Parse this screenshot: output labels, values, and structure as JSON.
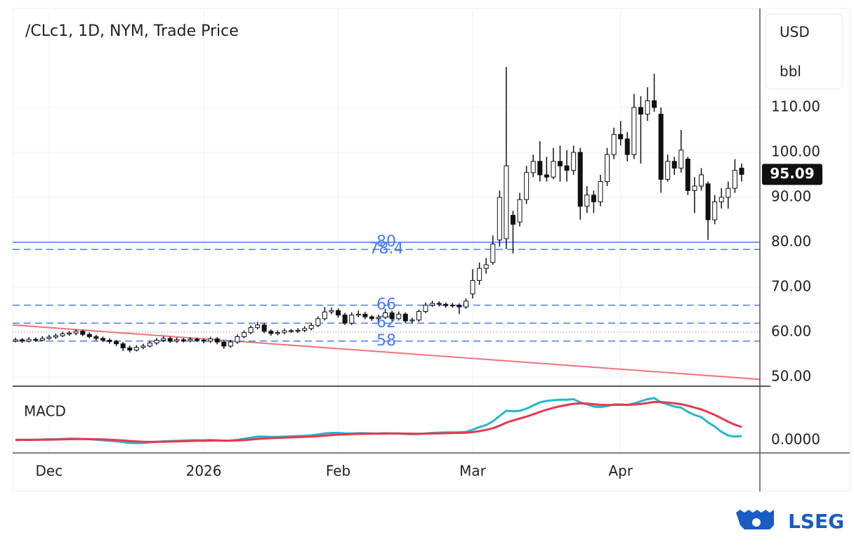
{
  "chart_data": {
    "type": "candlestick",
    "title": "/CLc1, 1D, NYM, Trade Price",
    "currency": "USD",
    "unit": "bbl",
    "categories": [
      null,
      null,
      null,
      null,
      null,
      "Dec",
      null,
      null,
      null,
      null,
      null,
      null,
      null,
      null,
      null,
      null,
      null,
      null,
      null,
      null,
      null,
      null,
      null,
      null,
      null,
      null,
      null,
      null,
      "2026",
      null,
      null,
      null,
      null,
      null,
      null,
      null,
      null,
      null,
      null,
      null,
      null,
      null,
      null,
      null,
      null,
      null,
      null,
      null,
      "Feb",
      null,
      null,
      null,
      null,
      null,
      null,
      null,
      null,
      null,
      null,
      null,
      null,
      null,
      null,
      null,
      null,
      null,
      null,
      null,
      "Mar",
      null,
      null,
      null,
      null,
      null,
      null,
      null,
      null,
      null,
      null,
      null,
      null,
      null,
      null,
      null,
      null,
      null,
      null,
      null,
      null,
      null,
      "Apr",
      null,
      null,
      null,
      null,
      null,
      null,
      null,
      null,
      null,
      null,
      null,
      null,
      null,
      null,
      null,
      null,
      null,
      null
    ],
    "open": [
      58.0,
      58.3,
      58.0,
      58.4,
      58.2,
      58.6,
      58.9,
      59.2,
      59.6,
      59.8,
      60.2,
      59.5,
      59.0,
      58.6,
      58.2,
      57.9,
      57.4,
      56.5,
      56.0,
      56.6,
      56.9,
      57.6,
      58.2,
      58.6,
      58.0,
      58.3,
      58.1,
      58.4,
      58.2,
      58.0,
      58.5,
      57.8,
      56.9,
      57.8,
      59.0,
      59.9,
      61.0,
      61.6,
      60.2,
      59.7,
      59.9,
      60.3,
      60.2,
      60.4,
      60.8,
      61.5,
      63.0,
      64.5,
      64.8,
      63.8,
      62.0,
      63.8,
      64.0,
      63.4,
      63.0,
      63.3,
      64.3,
      63.0,
      64.0,
      62.5,
      62.7,
      64.6,
      66.0,
      66.4,
      66.2,
      65.9,
      66.0,
      65.6,
      68.5,
      71.5,
      74.2,
      75.5,
      80.5,
      80.8,
      86.0,
      84.5,
      89.5,
      95.5,
      98.0,
      95.0,
      94.5,
      98.0,
      97.0,
      96.0,
      100.0,
      88.0,
      90.5,
      89.0,
      93.5,
      99.5,
      104.0,
      103.0,
      99.5,
      110.0,
      108.5,
      111.5,
      108.5,
      94.0,
      98.0,
      96.5,
      98.5,
      91.5,
      92.5,
      93.0,
      85.0,
      89.0,
      90.0,
      92.0,
      96.5
    ],
    "high": [
      58.8,
      58.7,
      58.9,
      58.8,
      59.1,
      59.4,
      59.7,
      60.1,
      60.3,
      60.6,
      60.5,
      59.9,
      59.4,
      59.0,
      58.6,
      58.3,
      57.8,
      57.0,
      57.1,
      57.4,
      58.1,
      58.7,
      59.1,
      59.0,
      58.8,
      58.7,
      58.9,
      58.8,
      58.6,
      59.0,
      58.9,
      58.2,
      58.3,
      59.5,
      60.4,
      61.5,
      62.3,
      62.0,
      60.6,
      60.4,
      60.8,
      60.7,
      60.9,
      61.3,
      62.0,
      63.5,
      65.6,
      65.5,
      65.3,
      64.3,
      64.4,
      64.8,
      64.5,
      63.8,
      63.9,
      65.2,
      64.8,
      64.6,
      64.4,
      63.2,
      65.0,
      66.6,
      67.0,
      66.9,
      66.6,
      66.5,
      66.4,
      67.5,
      74.0,
      75.5,
      76.5,
      81.5,
      91.5,
      119.0,
      87.0,
      91.0,
      97.0,
      99.5,
      102.5,
      99.0,
      101.0,
      101.5,
      100.5,
      101.5,
      101.0,
      92.5,
      91.5,
      95.0,
      101.0,
      105.5,
      107.0,
      104.5,
      113.0,
      112.5,
      114.5,
      117.5,
      110.0,
      99.5,
      99.0,
      105.0,
      99.0,
      94.5,
      96.5,
      93.5,
      90.5,
      92.0,
      93.5,
      98.5,
      97.5
    ],
    "low": [
      57.7,
      57.6,
      57.7,
      57.8,
      58.0,
      58.3,
      58.5,
      58.9,
      59.2,
      59.3,
      59.1,
      58.6,
      58.1,
      57.8,
      57.4,
      56.9,
      55.8,
      55.5,
      55.7,
      56.2,
      56.6,
      57.2,
      57.8,
      57.6,
      57.6,
      57.7,
      57.7,
      57.8,
      57.5,
      57.6,
      57.3,
      56.3,
      56.5,
      57.4,
      58.6,
      59.5,
      60.6,
      59.8,
      59.2,
      59.3,
      59.5,
      59.8,
      59.8,
      60.0,
      60.4,
      61.1,
      62.6,
      64.0,
      63.2,
      61.6,
      61.6,
      63.3,
      62.9,
      62.5,
      62.6,
      62.9,
      62.5,
      62.6,
      62.0,
      62.0,
      62.3,
      64.2,
      65.6,
      65.7,
      65.4,
      65.4,
      64.0,
      65.2,
      67.5,
      70.5,
      73.0,
      75.0,
      79.0,
      78.5,
      77.5,
      83.5,
      88.5,
      94.5,
      93.5,
      93.5,
      94.0,
      93.5,
      93.5,
      95.0,
      85.0,
      86.5,
      86.5,
      88.0,
      92.5,
      98.5,
      101.5,
      98.0,
      98.5,
      97.5,
      107.0,
      109.0,
      91.0,
      93.5,
      95.0,
      95.5,
      90.5,
      86.5,
      91.5,
      80.5,
      84.0,
      87.5,
      87.5,
      91.0,
      93.5
    ],
    "close": [
      58.3,
      58.0,
      58.4,
      58.2,
      58.6,
      58.9,
      59.2,
      59.6,
      59.8,
      60.2,
      59.5,
      59.0,
      58.6,
      58.2,
      57.9,
      57.4,
      56.5,
      56.0,
      56.6,
      56.9,
      57.6,
      58.2,
      58.6,
      58.0,
      58.3,
      58.1,
      58.4,
      58.2,
      58.0,
      58.5,
      57.8,
      56.9,
      57.8,
      59.0,
      59.9,
      61.0,
      61.6,
      60.2,
      59.7,
      59.9,
      60.3,
      60.2,
      60.4,
      60.8,
      61.5,
      63.0,
      64.5,
      64.8,
      63.8,
      62.0,
      63.8,
      64.0,
      63.4,
      63.0,
      63.3,
      64.3,
      63.0,
      64.0,
      62.5,
      62.7,
      64.6,
      66.0,
      66.4,
      66.2,
      65.9,
      66.0,
      65.6,
      66.9,
      71.5,
      74.2,
      75.0,
      79.6,
      90.0,
      97.0,
      84.0,
      89.5,
      95.5,
      98.0,
      95.0,
      94.5,
      98.0,
      97.0,
      96.0,
      100.0,
      88.0,
      90.5,
      89.0,
      93.5,
      99.5,
      104.0,
      103.0,
      99.5,
      110.0,
      108.5,
      111.5,
      110.0,
      94.0,
      98.0,
      96.5,
      100.5,
      91.5,
      92.5,
      95.0,
      85.0,
      89.0,
      90.0,
      92.0,
      96.0,
      95.09
    ],
    "ylim": [
      47.97,
      131.56
    ],
    "yticks": [
      {
        "value": 50,
        "label": "50.00"
      },
      {
        "value": 60,
        "label": "60.00"
      },
      {
        "value": 70,
        "label": "70.00"
      },
      {
        "value": 80,
        "label": "80.00"
      },
      {
        "value": 90,
        "label": "90.00"
      },
      {
        "value": 100,
        "label": "100.00"
      },
      {
        "value": 110,
        "label": "110.00"
      }
    ],
    "grid": true,
    "levels": [
      {
        "value": 80,
        "style": "solid",
        "color": "#4a7cf7"
      },
      {
        "value": 78.4,
        "style": "dashed",
        "color": "#4a7cf7"
      },
      {
        "value": 66,
        "style": "dashed",
        "color": "#4a7cf7"
      },
      {
        "value": 62,
        "style": "dashed",
        "color": "#4a7cf7"
      },
      {
        "value": 58,
        "style": "dashed",
        "color": "#4a7cf7"
      }
    ],
    "reference_line": 60,
    "trendline": {
      "color": "#f0737a",
      "values": [
        61.6,
        49.5
      ]
    },
    "indicator": {
      "title": "MACD",
      "ylim": [
        -2.4,
        10
      ],
      "yticks": [
        {
          "value": 0,
          "label": "0.0000"
        }
      ],
      "series": [
        {
          "color": "#22b8cf",
          "values": [
            0.1,
            0.1,
            0.1,
            0.1,
            0.15,
            0.2,
            0.2,
            0.25,
            0.3,
            0.3,
            0.25,
            0.2,
            0.1,
            0.0,
            -0.1,
            -0.2,
            -0.35,
            -0.5,
            -0.55,
            -0.5,
            -0.4,
            -0.3,
            -0.2,
            -0.15,
            -0.1,
            -0.05,
            0.0,
            0.0,
            0.0,
            0.05,
            0.0,
            -0.1,
            -0.05,
            0.1,
            0.3,
            0.5,
            0.7,
            0.7,
            0.65,
            0.65,
            0.7,
            0.75,
            0.8,
            0.85,
            0.95,
            1.1,
            1.3,
            1.4,
            1.4,
            1.3,
            1.3,
            1.35,
            1.35,
            1.3,
            1.3,
            1.35,
            1.3,
            1.3,
            1.2,
            1.15,
            1.2,
            1.3,
            1.4,
            1.45,
            1.5,
            1.5,
            1.5,
            1.6,
            2.0,
            2.5,
            2.9,
            3.6,
            4.6,
            5.6,
            5.5,
            5.6,
            6.0,
            6.6,
            7.2,
            7.5,
            7.6,
            7.7,
            7.7,
            7.8,
            7.2,
            6.8,
            6.4,
            6.3,
            6.5,
            6.8,
            6.8,
            6.7,
            7.0,
            7.4,
            7.8,
            8.0,
            7.2,
            6.8,
            6.4,
            6.2,
            5.4,
            4.8,
            4.4,
            3.4,
            2.6,
            1.6,
            0.9,
            0.7,
            0.8
          ]
        },
        {
          "color": "#e8384f",
          "values": [
            0.05,
            0.06,
            0.07,
            0.08,
            0.1,
            0.12,
            0.14,
            0.17,
            0.2,
            0.22,
            0.23,
            0.22,
            0.2,
            0.16,
            0.1,
            0.04,
            -0.04,
            -0.13,
            -0.22,
            -0.28,
            -0.3,
            -0.3,
            -0.28,
            -0.25,
            -0.22,
            -0.18,
            -0.14,
            -0.11,
            -0.09,
            -0.06,
            -0.05,
            -0.06,
            -0.06,
            -0.03,
            0.04,
            0.13,
            0.25,
            0.34,
            0.4,
            0.45,
            0.5,
            0.55,
            0.6,
            0.65,
            0.7,
            0.78,
            0.88,
            0.99,
            1.07,
            1.12,
            1.16,
            1.2,
            1.23,
            1.24,
            1.25,
            1.27,
            1.28,
            1.28,
            1.27,
            1.25,
            1.24,
            1.25,
            1.28,
            1.31,
            1.35,
            1.38,
            1.4,
            1.44,
            1.55,
            1.74,
            1.97,
            2.3,
            2.76,
            3.33,
            3.76,
            4.13,
            4.5,
            4.92,
            5.38,
            5.8,
            6.16,
            6.47,
            6.72,
            6.94,
            7.0,
            6.96,
            6.85,
            6.74,
            6.7,
            6.72,
            6.74,
            6.73,
            6.78,
            6.9,
            7.08,
            7.26,
            7.25,
            7.16,
            7.01,
            6.85,
            6.56,
            6.21,
            5.85,
            5.36,
            4.81,
            4.17,
            3.52,
            2.96,
            2.53
          ]
        }
      ]
    },
    "brand": "LSEG"
  }
}
